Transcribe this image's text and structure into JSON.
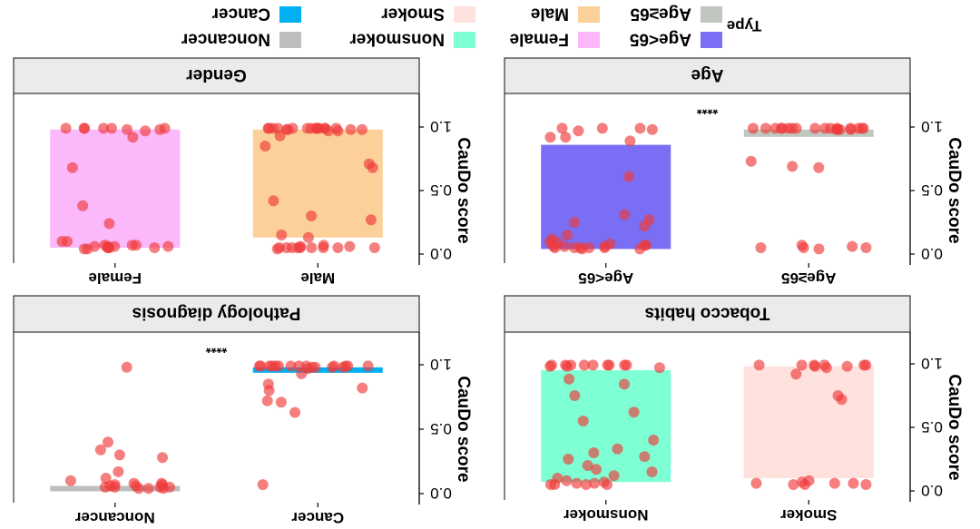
{
  "legend": {
    "title": "Type",
    "items": [
      {
        "label": "Cancer",
        "color": "#00B0F0"
      },
      {
        "label": "Noncancer",
        "color": "#BEBEBE"
      },
      {
        "label": "Smoker",
        "color": "#FFE1DE"
      },
      {
        "label": "Nonsmoker",
        "color": "#7FFFD4"
      },
      {
        "label": "Male",
        "color": "#FCD099"
      },
      {
        "label": "Female",
        "color": "#FBB8FB"
      },
      {
        "label": "Age≥65",
        "color": "#BFC7C0"
      },
      {
        "label": "Age<65",
        "color": "#7A6EF4"
      }
    ],
    "placement": "top"
  },
  "chart_data": [
    {
      "type": "bar",
      "title": "Gender",
      "ylabel": "CauDo score",
      "ylim": [
        0,
        1
      ],
      "yticks": [
        "0.0",
        "0.5",
        "1.0"
      ],
      "categories": [
        "Male",
        "Female"
      ],
      "values": [
        0.98,
        0.98
      ],
      "colors": [
        "#FCD099",
        "#FBB8FB"
      ],
      "significance": "",
      "points": [
        [
          0.99,
          0.99,
          0.99,
          0.98,
          0.99,
          0.99,
          0.99,
          0.98,
          0.97,
          0.99,
          0.99,
          0.98,
          0.99,
          0.99,
          0.99,
          0.98,
          0.97,
          0.99,
          0.99,
          0.99,
          0.93,
          0.85,
          0.71,
          0.68,
          0.42,
          0.3,
          0.27,
          0.15,
          0.13,
          0.07,
          0.05,
          0.05,
          0.05,
          0.05,
          0.05,
          0.05,
          0.05,
          0.05,
          0.04,
          0.06,
          0.06,
          0.05
        ],
        [
          0.99,
          0.99,
          0.99,
          0.98,
          0.99,
          0.99,
          0.98,
          0.99,
          0.97,
          0.92,
          0.68,
          0.38,
          0.24,
          0.1,
          0.1,
          0.07,
          0.07,
          0.07,
          0.06,
          0.06,
          0.06,
          0.06,
          0.05,
          0.05,
          0.05,
          0.05,
          0.04,
          0.04
        ]
      ]
    },
    {
      "type": "bar",
      "title": "Age",
      "ylabel": "CauDo score",
      "ylim": [
        0,
        1
      ],
      "yticks": [
        "0.0",
        "0.5",
        "1.0"
      ],
      "categories": [
        "Age≥65",
        "Age<65"
      ],
      "values": [
        0.98,
        0.86
      ],
      "colors": [
        "#BFC7C0",
        "#7A6EF4"
      ],
      "significance": "****",
      "points": [
        [
          0.99,
          0.99,
          0.99,
          0.98,
          0.99,
          0.99,
          0.99,
          0.98,
          0.98,
          0.99,
          0.99,
          0.99,
          0.99,
          0.99,
          0.99,
          0.99,
          0.99,
          0.98,
          0.99,
          0.99,
          0.73,
          0.69,
          0.68,
          0.07,
          0.05,
          0.05,
          0.05,
          0.06,
          0.04
        ],
        [
          0.99,
          0.99,
          0.99,
          0.98,
          0.97,
          0.92,
          0.92,
          0.89,
          0.61,
          0.31,
          0.27,
          0.25,
          0.22,
          0.15,
          0.12,
          0.09,
          0.09,
          0.08,
          0.07,
          0.07,
          0.06,
          0.06,
          0.06,
          0.05,
          0.05,
          0.05,
          0.05,
          0.05,
          0.04,
          0.04
        ]
      ]
    },
    {
      "type": "bar",
      "title": "Pathology diagnosis",
      "ylabel": "CauDo score",
      "ylim": [
        0,
        1
      ],
      "yticks": [
        "0.0",
        "0.5",
        "1.0"
      ],
      "categories": [
        "Cancer",
        "Noncancer"
      ],
      "values": [
        0.98,
        0.06
      ],
      "colors": [
        "#00B0F0",
        "#BEBEBE"
      ],
      "significance": "****",
      "points": [
        [
          0.99,
          0.99,
          0.99,
          0.98,
          0.99,
          0.99,
          0.99,
          0.98,
          0.97,
          0.99,
          0.99,
          0.98,
          0.99,
          0.99,
          0.99,
          0.98,
          0.99,
          0.99,
          0.93,
          0.85,
          0.82,
          0.8,
          0.72,
          0.71,
          0.63,
          0.07
        ],
        [
          0.98,
          0.4,
          0.34,
          0.3,
          0.28,
          0.17,
          0.12,
          0.1,
          0.08,
          0.08,
          0.07,
          0.07,
          0.06,
          0.06,
          0.05,
          0.05,
          0.05,
          0.05,
          0.04,
          0.04,
          0.04
        ]
      ]
    },
    {
      "type": "bar",
      "title": "Tobacco habits",
      "ylabel": "CauDo score",
      "ylim": [
        0,
        1
      ],
      "yticks": [
        "0.0",
        "0.5",
        "1.0"
      ],
      "categories": [
        "Smoker",
        "Nonsmoker"
      ],
      "values": [
        0.98,
        0.95
      ],
      "colors": [
        "#FFE1DE",
        "#7FFFD4"
      ],
      "significance": "",
      "points": [
        [
          0.99,
          0.99,
          0.99,
          0.98,
          0.99,
          0.99,
          0.99,
          0.98,
          0.97,
          0.92,
          0.75,
          0.72,
          0.08,
          0.07,
          0.06,
          0.06,
          0.06,
          0.05,
          0.05,
          0.05
        ],
        [
          0.99,
          0.99,
          0.99,
          0.98,
          0.99,
          0.99,
          0.99,
          0.98,
          0.97,
          0.99,
          0.99,
          0.99,
          0.88,
          0.84,
          0.75,
          0.62,
          0.55,
          0.4,
          0.33,
          0.3,
          0.27,
          0.25,
          0.2,
          0.17,
          0.15,
          0.12,
          0.1,
          0.08,
          0.07,
          0.06,
          0.06,
          0.05,
          0.05,
          0.05,
          0.05
        ]
      ]
    }
  ]
}
